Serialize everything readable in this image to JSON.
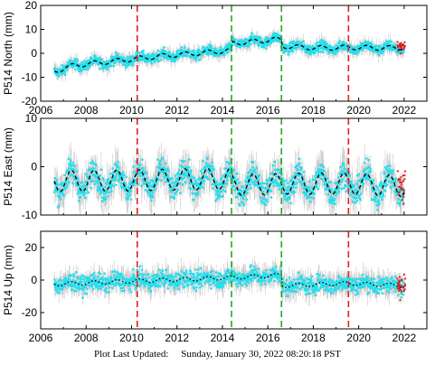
{
  "footer": {
    "label": "Plot Last Updated:",
    "timestamp": "Sunday, January 30, 2022 08:20:18 PST"
  },
  "colors": {
    "data": "#22dfee",
    "errorbar": "#b4b4b4",
    "model": "#000000",
    "outlier": "#e02020",
    "red_line": "#e02020",
    "green_line": "#22aa22"
  },
  "chart_data": [
    {
      "type": "scatter",
      "title": "",
      "ylabel": "P514 North (mm)",
      "xlim": [
        2006,
        2023
      ],
      "ylim": [
        -20,
        20
      ],
      "yticks": [
        -20,
        -10,
        0,
        10,
        20
      ],
      "xticks": [
        2006,
        2008,
        2010,
        2012,
        2014,
        2016,
        2018,
        2020,
        2022
      ],
      "x_tick_labels_shown": true,
      "vlines": [
        {
          "x": 2010.25,
          "color": "red"
        },
        {
          "x": 2014.4,
          "color": "green"
        },
        {
          "x": 2016.6,
          "color": "green"
        },
        {
          "x": 2019.55,
          "color": "red"
        }
      ],
      "data_start": 2006.6,
      "data_end": 2022.0,
      "trend_points": [
        [
          2006.6,
          -7.5
        ],
        [
          2007.5,
          -5.0
        ],
        [
          2008.5,
          -4.0
        ],
        [
          2009.5,
          -3.0
        ],
        [
          2010.25,
          -2.2
        ],
        [
          2011.5,
          -1.0
        ],
        [
          2012.5,
          -0.3
        ],
        [
          2013.5,
          0.5
        ],
        [
          2014.4,
          1.2
        ],
        [
          2014.42,
          4.2
        ],
        [
          2015.5,
          5.0
        ],
        [
          2016.3,
          5.8
        ],
        [
          2016.6,
          5.6
        ],
        [
          2016.62,
          3.0
        ],
        [
          2017.5,
          2.5
        ],
        [
          2018.5,
          2.2
        ],
        [
          2019.55,
          2.5
        ],
        [
          2020.5,
          2.3
        ],
        [
          2021.5,
          2.2
        ],
        [
          2022.0,
          2.6
        ]
      ],
      "seasonal_amplitude": 1.0,
      "scatter_spread": 2.0
    },
    {
      "type": "scatter",
      "title": "",
      "ylabel": "P514 East (mm)",
      "xlim": [
        2006,
        2023
      ],
      "ylim": [
        -10,
        10
      ],
      "yticks": [
        -10,
        0,
        10
      ],
      "xticks": [
        2006,
        2008,
        2010,
        2012,
        2014,
        2016,
        2018,
        2020,
        2022
      ],
      "x_tick_labels_shown": false,
      "vlines": [
        {
          "x": 2010.25,
          "color": "red"
        },
        {
          "x": 2014.4,
          "color": "green"
        },
        {
          "x": 2016.6,
          "color": "green"
        },
        {
          "x": 2019.55,
          "color": "red"
        }
      ],
      "data_start": 2006.6,
      "data_end": 2022.0,
      "trend_points": [
        [
          2006.6,
          -3.0
        ],
        [
          2010.25,
          -2.8
        ],
        [
          2014.4,
          -2.5
        ],
        [
          2014.42,
          -3.8
        ],
        [
          2016.6,
          -3.6
        ],
        [
          2016.62,
          -3.5
        ],
        [
          2019.55,
          -3.5
        ],
        [
          2022.0,
          -4.0
        ]
      ],
      "seasonal_amplitude": 2.2,
      "scatter_spread": 2.5
    },
    {
      "type": "scatter",
      "title": "",
      "ylabel": "P514 Up (mm)",
      "xlim": [
        2006,
        2023
      ],
      "ylim": [
        -30,
        30
      ],
      "yticks": [
        -20,
        0,
        20
      ],
      "xticks": [
        2006,
        2008,
        2010,
        2012,
        2014,
        2016,
        2018,
        2020,
        2022
      ],
      "x_tick_labels_shown": true,
      "vlines": [
        {
          "x": 2010.25,
          "color": "red"
        },
        {
          "x": 2014.4,
          "color": "green"
        },
        {
          "x": 2016.6,
          "color": "green"
        },
        {
          "x": 2019.55,
          "color": "red"
        }
      ],
      "data_start": 2006.6,
      "data_end": 2022.0,
      "trend_points": [
        [
          2006.6,
          -2.5
        ],
        [
          2008.5,
          -1.5
        ],
        [
          2010.25,
          -0.5
        ],
        [
          2012.5,
          0.5
        ],
        [
          2014.4,
          1.5
        ],
        [
          2016.6,
          3.0
        ],
        [
          2016.62,
          -3.5
        ],
        [
          2019.55,
          -2.0
        ],
        [
          2022.0,
          -3.5
        ]
      ],
      "seasonal_amplitude": 1.2,
      "scatter_spread": 5.0
    }
  ]
}
